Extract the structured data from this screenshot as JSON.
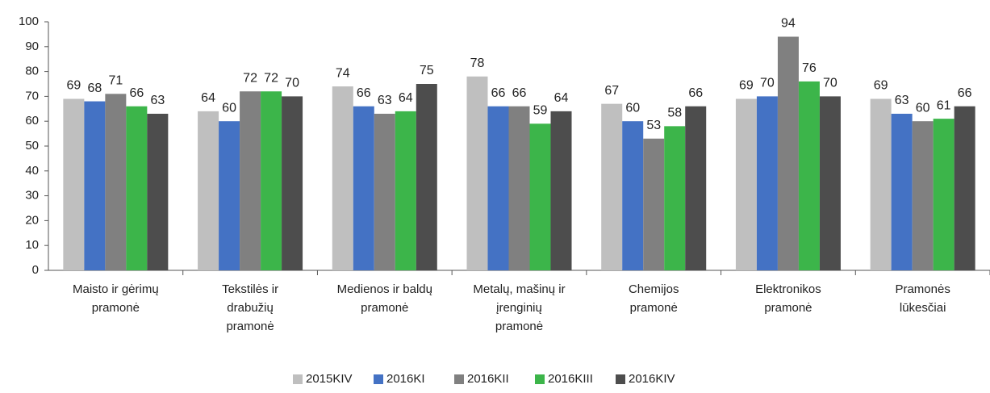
{
  "chart_data": {
    "type": "bar",
    "categories": [
      "Maisto ir gėrimų\npramonė",
      "Tekstilės ir\ndrabužių\npramonė",
      "Medienos ir baldų\npramonė",
      "Metalų, mašinų ir\nįrenginių\npramonė",
      "Chemijos\npramonė",
      "Elektronikos\npramonė",
      "Pramonės\nlūkesčiai"
    ],
    "series": [
      {
        "name": "2015KIV",
        "color": "#bfbfbf",
        "values": [
          69,
          64,
          74,
          78,
          67,
          69,
          69
        ]
      },
      {
        "name": "2016KI",
        "color": "#4472c4",
        "values": [
          68,
          60,
          66,
          66,
          60,
          70,
          63
        ]
      },
      {
        "name": "2016KII",
        "color": "#808080",
        "values": [
          71,
          72,
          63,
          66,
          53,
          94,
          60
        ]
      },
      {
        "name": "2016KIII",
        "color": "#3cb54a",
        "values": [
          66,
          72,
          64,
          59,
          58,
          76,
          61
        ]
      },
      {
        "name": "2016KIV",
        "color": "#4d4d4d",
        "values": [
          63,
          70,
          75,
          64,
          66,
          70,
          66
        ]
      }
    ],
    "ylim": [
      0,
      100
    ],
    "yticks": [
      0,
      10,
      20,
      30,
      40,
      50,
      60,
      70,
      80,
      90,
      100
    ],
    "grid": false,
    "legend": "bottom"
  }
}
